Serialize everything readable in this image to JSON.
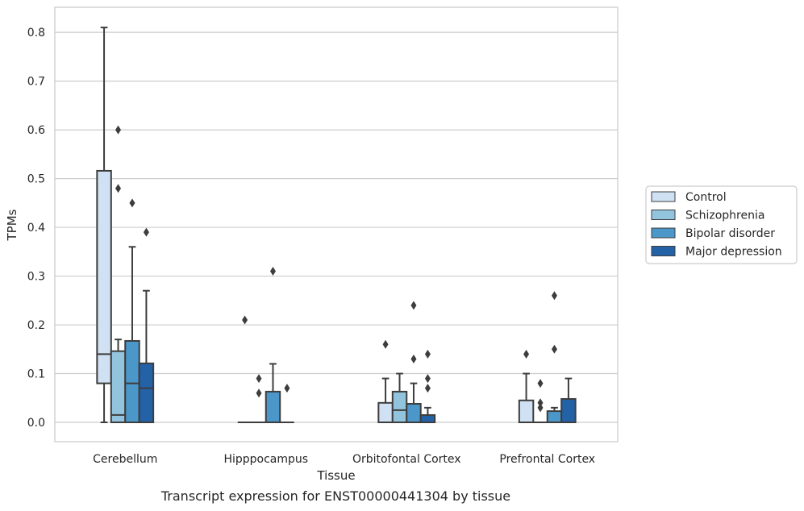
{
  "caption": "Transcript expression for ENST00000441304 by tissue",
  "chart_data": {
    "type": "box",
    "xlabel": "Tissue",
    "ylabel": "TPMs",
    "ylim": [
      -0.04,
      0.855
    ],
    "yticks": [
      0.0,
      0.1,
      0.2,
      0.3,
      0.4,
      0.5,
      0.6,
      0.7,
      0.8
    ],
    "ytick_labels": [
      "0.0",
      "0.1",
      "0.2",
      "0.3",
      "0.4",
      "0.5",
      "0.6",
      "0.7",
      "0.8"
    ],
    "grid": "horizontal",
    "legend_position": "right",
    "categories": [
      "Cerebellum",
      "Hipppocampus",
      "Orbitofontal Cortex",
      "Prefrontal Cortex"
    ],
    "series": [
      {
        "name": "Control",
        "color": "#cfe1f2",
        "boxes": [
          {
            "whislo": 0.0,
            "q1": 0.08,
            "med": 0.14,
            "q3": 0.516,
            "whishi": 0.81,
            "fliers": []
          },
          {
            "whislo": 0.0,
            "q1": 0.0,
            "med": 0.0,
            "q3": 0.0,
            "whishi": 0.0,
            "fliers": [
              0.21
            ]
          },
          {
            "whislo": 0.0,
            "q1": 0.0,
            "med": 0.0,
            "q3": 0.04,
            "whishi": 0.09,
            "fliers": [
              0.16
            ]
          },
          {
            "whislo": 0.0,
            "q1": 0.0,
            "med": 0.0,
            "q3": 0.045,
            "whishi": 0.1,
            "fliers": [
              0.14
            ]
          }
        ]
      },
      {
        "name": "Schizophrenia",
        "color": "#93c4de",
        "boxes": [
          {
            "whislo": 0.0,
            "q1": 0.0,
            "med": 0.015,
            "q3": 0.146,
            "whishi": 0.17,
            "fliers": [
              0.6,
              0.48
            ]
          },
          {
            "whislo": 0.0,
            "q1": 0.0,
            "med": 0.0,
            "q3": 0.0,
            "whishi": 0.0,
            "fliers": [
              0.09,
              0.06
            ]
          },
          {
            "whislo": 0.0,
            "q1": 0.0,
            "med": 0.025,
            "q3": 0.063,
            "whishi": 0.1,
            "fliers": []
          },
          {
            "whislo": 0.0,
            "q1": 0.0,
            "med": 0.0,
            "q3": 0.0,
            "whishi": 0.0,
            "fliers": [
              0.08,
              0.04,
              0.03
            ]
          }
        ]
      },
      {
        "name": "Bipolar disorder",
        "color": "#4b97c9",
        "boxes": [
          {
            "whislo": 0.0,
            "q1": 0.0,
            "med": 0.08,
            "q3": 0.167,
            "whishi": 0.36,
            "fliers": [
              0.45
            ]
          },
          {
            "whislo": 0.0,
            "q1": 0.0,
            "med": 0.0,
            "q3": 0.063,
            "whishi": 0.12,
            "fliers": [
              0.31
            ]
          },
          {
            "whislo": 0.0,
            "q1": 0.0,
            "med": 0.0,
            "q3": 0.038,
            "whishi": 0.08,
            "fliers": [
              0.24,
              0.13
            ]
          },
          {
            "whislo": 0.0,
            "q1": 0.0,
            "med": 0.0,
            "q3": 0.023,
            "whishi": 0.03,
            "fliers": [
              0.26,
              0.15
            ]
          }
        ]
      },
      {
        "name": "Major depression",
        "color": "#2462a8",
        "boxes": [
          {
            "whislo": 0.0,
            "q1": 0.0,
            "med": 0.07,
            "q3": 0.121,
            "whishi": 0.27,
            "fliers": [
              0.39
            ]
          },
          {
            "whislo": 0.0,
            "q1": 0.0,
            "med": 0.0,
            "q3": 0.0,
            "whishi": 0.0,
            "fliers": [
              0.07
            ]
          },
          {
            "whislo": 0.0,
            "q1": 0.0,
            "med": 0.0,
            "q3": 0.015,
            "whishi": 0.03,
            "fliers": [
              0.14,
              0.09,
              0.07
            ]
          },
          {
            "whislo": 0.0,
            "q1": 0.0,
            "med": 0.0,
            "q3": 0.048,
            "whishi": 0.09,
            "fliers": []
          }
        ]
      }
    ]
  }
}
